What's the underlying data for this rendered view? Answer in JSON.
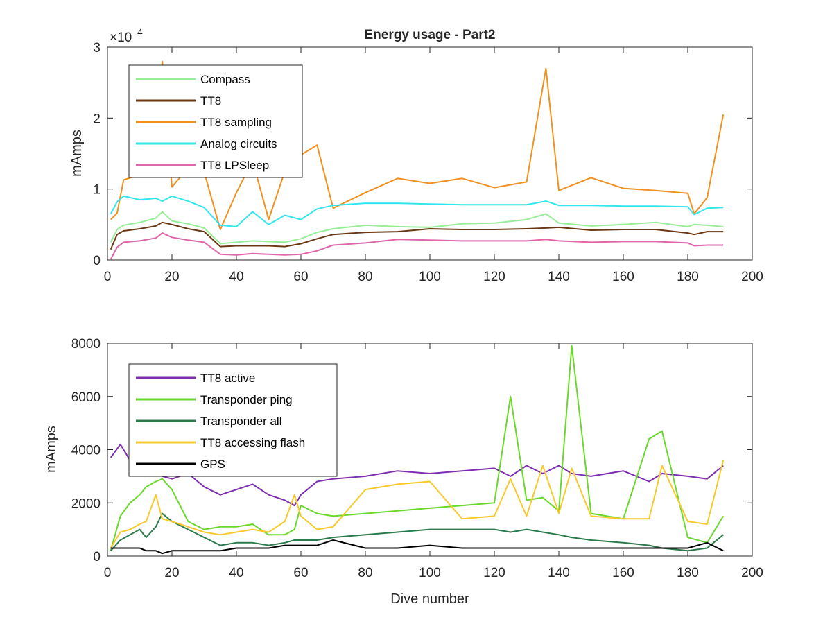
{
  "figure": {
    "title": "Energy usage - Part2",
    "xlabel": "Dive number"
  },
  "chart_data": [
    {
      "type": "line",
      "title": "Energy usage - Part2",
      "xlabel": "",
      "ylabel": "mAmps",
      "exponent_label": "×10",
      "exponent_power": "4",
      "xlim": [
        0,
        200
      ],
      "ylim": [
        0,
        30000
      ],
      "xticks": [
        0,
        20,
        40,
        60,
        80,
        100,
        120,
        140,
        160,
        180,
        200
      ],
      "yticks": [
        0,
        10000,
        20000,
        30000
      ],
      "ytick_labels": [
        "0",
        "1",
        "2",
        "3"
      ],
      "legend_position": "top-left",
      "x": [
        1,
        3,
        5,
        10,
        15,
        17,
        20,
        25,
        30,
        35,
        40,
        45,
        50,
        55,
        60,
        65,
        70,
        80,
        90,
        100,
        110,
        120,
        130,
        136,
        140,
        150,
        160,
        170,
        180,
        182,
        186,
        191
      ],
      "series": [
        {
          "name": "Compass",
          "color": "#98ee98",
          "values": [
            2500,
            4300,
            4900,
            5300,
            5900,
            6800,
            5500,
            5100,
            4500,
            2300,
            2500,
            2700,
            2600,
            2500,
            3000,
            3900,
            4400,
            4900,
            4700,
            4600,
            5100,
            5200,
            5700,
            6500,
            5200,
            4800,
            5000,
            5300,
            4700,
            5000,
            4900,
            4700
          ]
        },
        {
          "name": "TT8",
          "color": "#6a3812",
          "values": [
            1500,
            3600,
            4100,
            4400,
            4800,
            5300,
            5000,
            4400,
            4000,
            1900,
            2000,
            2000,
            2000,
            1900,
            2300,
            3000,
            3600,
            3900,
            4000,
            4400,
            4300,
            4300,
            4400,
            4500,
            4600,
            4200,
            4300,
            4300,
            3800,
            3600,
            4000,
            4000
          ]
        },
        {
          "name": "TT8 sampling",
          "color": "#f0901e",
          "values": [
            5700,
            6600,
            11300,
            12000,
            13000,
            28000,
            10300,
            13000,
            12400,
            4300,
            9500,
            14000,
            5700,
            12500,
            14800,
            16200,
            7300,
            9500,
            11500,
            10800,
            11500,
            10200,
            11000,
            27000,
            9800,
            11600,
            10100,
            9800,
            9400,
            6500,
            8800,
            20500
          ]
        },
        {
          "name": "Analog circuits",
          "color": "#32e6ee",
          "values": [
            6500,
            8200,
            9000,
            8500,
            8700,
            8300,
            9000,
            8300,
            7400,
            4900,
            4700,
            6800,
            5000,
            6300,
            5700,
            7200,
            7700,
            8000,
            8000,
            7900,
            7800,
            7800,
            7800,
            8300,
            7700,
            7700,
            7600,
            7600,
            7500,
            6400,
            7300,
            7400
          ]
        },
        {
          "name": "TT8 LPSleep",
          "color": "#e066aa",
          "values": [
            100,
            1800,
            2500,
            2700,
            3100,
            3800,
            3200,
            2800,
            2500,
            800,
            700,
            900,
            800,
            700,
            800,
            1300,
            2100,
            2400,
            2900,
            2800,
            2700,
            2700,
            2700,
            2900,
            2700,
            2500,
            2600,
            2600,
            2400,
            2000,
            2100,
            2100
          ]
        }
      ]
    },
    {
      "type": "line",
      "title": "",
      "xlabel": "Dive number",
      "ylabel": "mAmps",
      "xlim": [
        0,
        200
      ],
      "ylim": [
        0,
        8000
      ],
      "xticks": [
        0,
        20,
        40,
        60,
        80,
        100,
        120,
        140,
        160,
        180,
        200
      ],
      "yticks": [
        0,
        2000,
        4000,
        6000,
        8000
      ],
      "ytick_labels": [
        "0",
        "2000",
        "4000",
        "6000",
        "8000"
      ],
      "legend_position": "top-left",
      "x": [
        1,
        4,
        7,
        10,
        12,
        15,
        17,
        20,
        25,
        30,
        35,
        40,
        45,
        50,
        55,
        58,
        60,
        65,
        70,
        80,
        90,
        100,
        110,
        120,
        125,
        130,
        135,
        140,
        144,
        150,
        160,
        168,
        172,
        180,
        186,
        191
      ],
      "series": [
        {
          "name": "TT8 active",
          "color": "#7d2fb0",
          "values": [
            3700,
            4200,
            3600,
            3900,
            3200,
            3400,
            3000,
            2900,
            3100,
            2600,
            2300,
            2500,
            2700,
            2300,
            2100,
            1900,
            2300,
            2800,
            2900,
            3000,
            3200,
            3100,
            3200,
            3300,
            3000,
            3400,
            3100,
            3400,
            3100,
            3000,
            3200,
            2800,
            3100,
            3000,
            2900,
            3400
          ]
        },
        {
          "name": "Transponder ping",
          "color": "#6ad82a",
          "values": [
            200,
            1500,
            2000,
            2300,
            2600,
            2800,
            2900,
            2500,
            1300,
            1000,
            1100,
            1100,
            1200,
            800,
            800,
            1000,
            1900,
            1600,
            1500,
            1600,
            1700,
            1800,
            1900,
            2000,
            6000,
            2100,
            2200,
            1700,
            7900,
            1600,
            1400,
            4400,
            4700,
            700,
            500,
            1500
          ]
        },
        {
          "name": "Transponder all",
          "color": "#2b7a4b",
          "values": [
            200,
            600,
            800,
            1000,
            700,
            1100,
            1600,
            1300,
            1000,
            700,
            400,
            500,
            500,
            400,
            500,
            600,
            600,
            600,
            700,
            800,
            900,
            1000,
            1000,
            1000,
            900,
            1000,
            900,
            800,
            700,
            600,
            500,
            400,
            300,
            200,
            300,
            800
          ]
        },
        {
          "name": "TT8 accessing flash",
          "color": "#f7c92a",
          "values": [
            300,
            900,
            1000,
            1200,
            1300,
            2300,
            1400,
            1300,
            1100,
            900,
            800,
            900,
            1000,
            900,
            1300,
            2300,
            1500,
            1000,
            1100,
            2500,
            2700,
            2800,
            1400,
            1500,
            2900,
            1500,
            3400,
            1600,
            3300,
            1500,
            1400,
            1400,
            3400,
            1300,
            1200,
            3600
          ]
        },
        {
          "name": "GPS",
          "color": "#000000",
          "values": [
            300,
            300,
            300,
            300,
            200,
            200,
            100,
            200,
            200,
            200,
            200,
            300,
            300,
            300,
            400,
            400,
            400,
            400,
            600,
            300,
            300,
            400,
            300,
            300,
            300,
            300,
            300,
            300,
            300,
            300,
            300,
            300,
            300,
            300,
            500,
            200
          ]
        }
      ]
    }
  ]
}
